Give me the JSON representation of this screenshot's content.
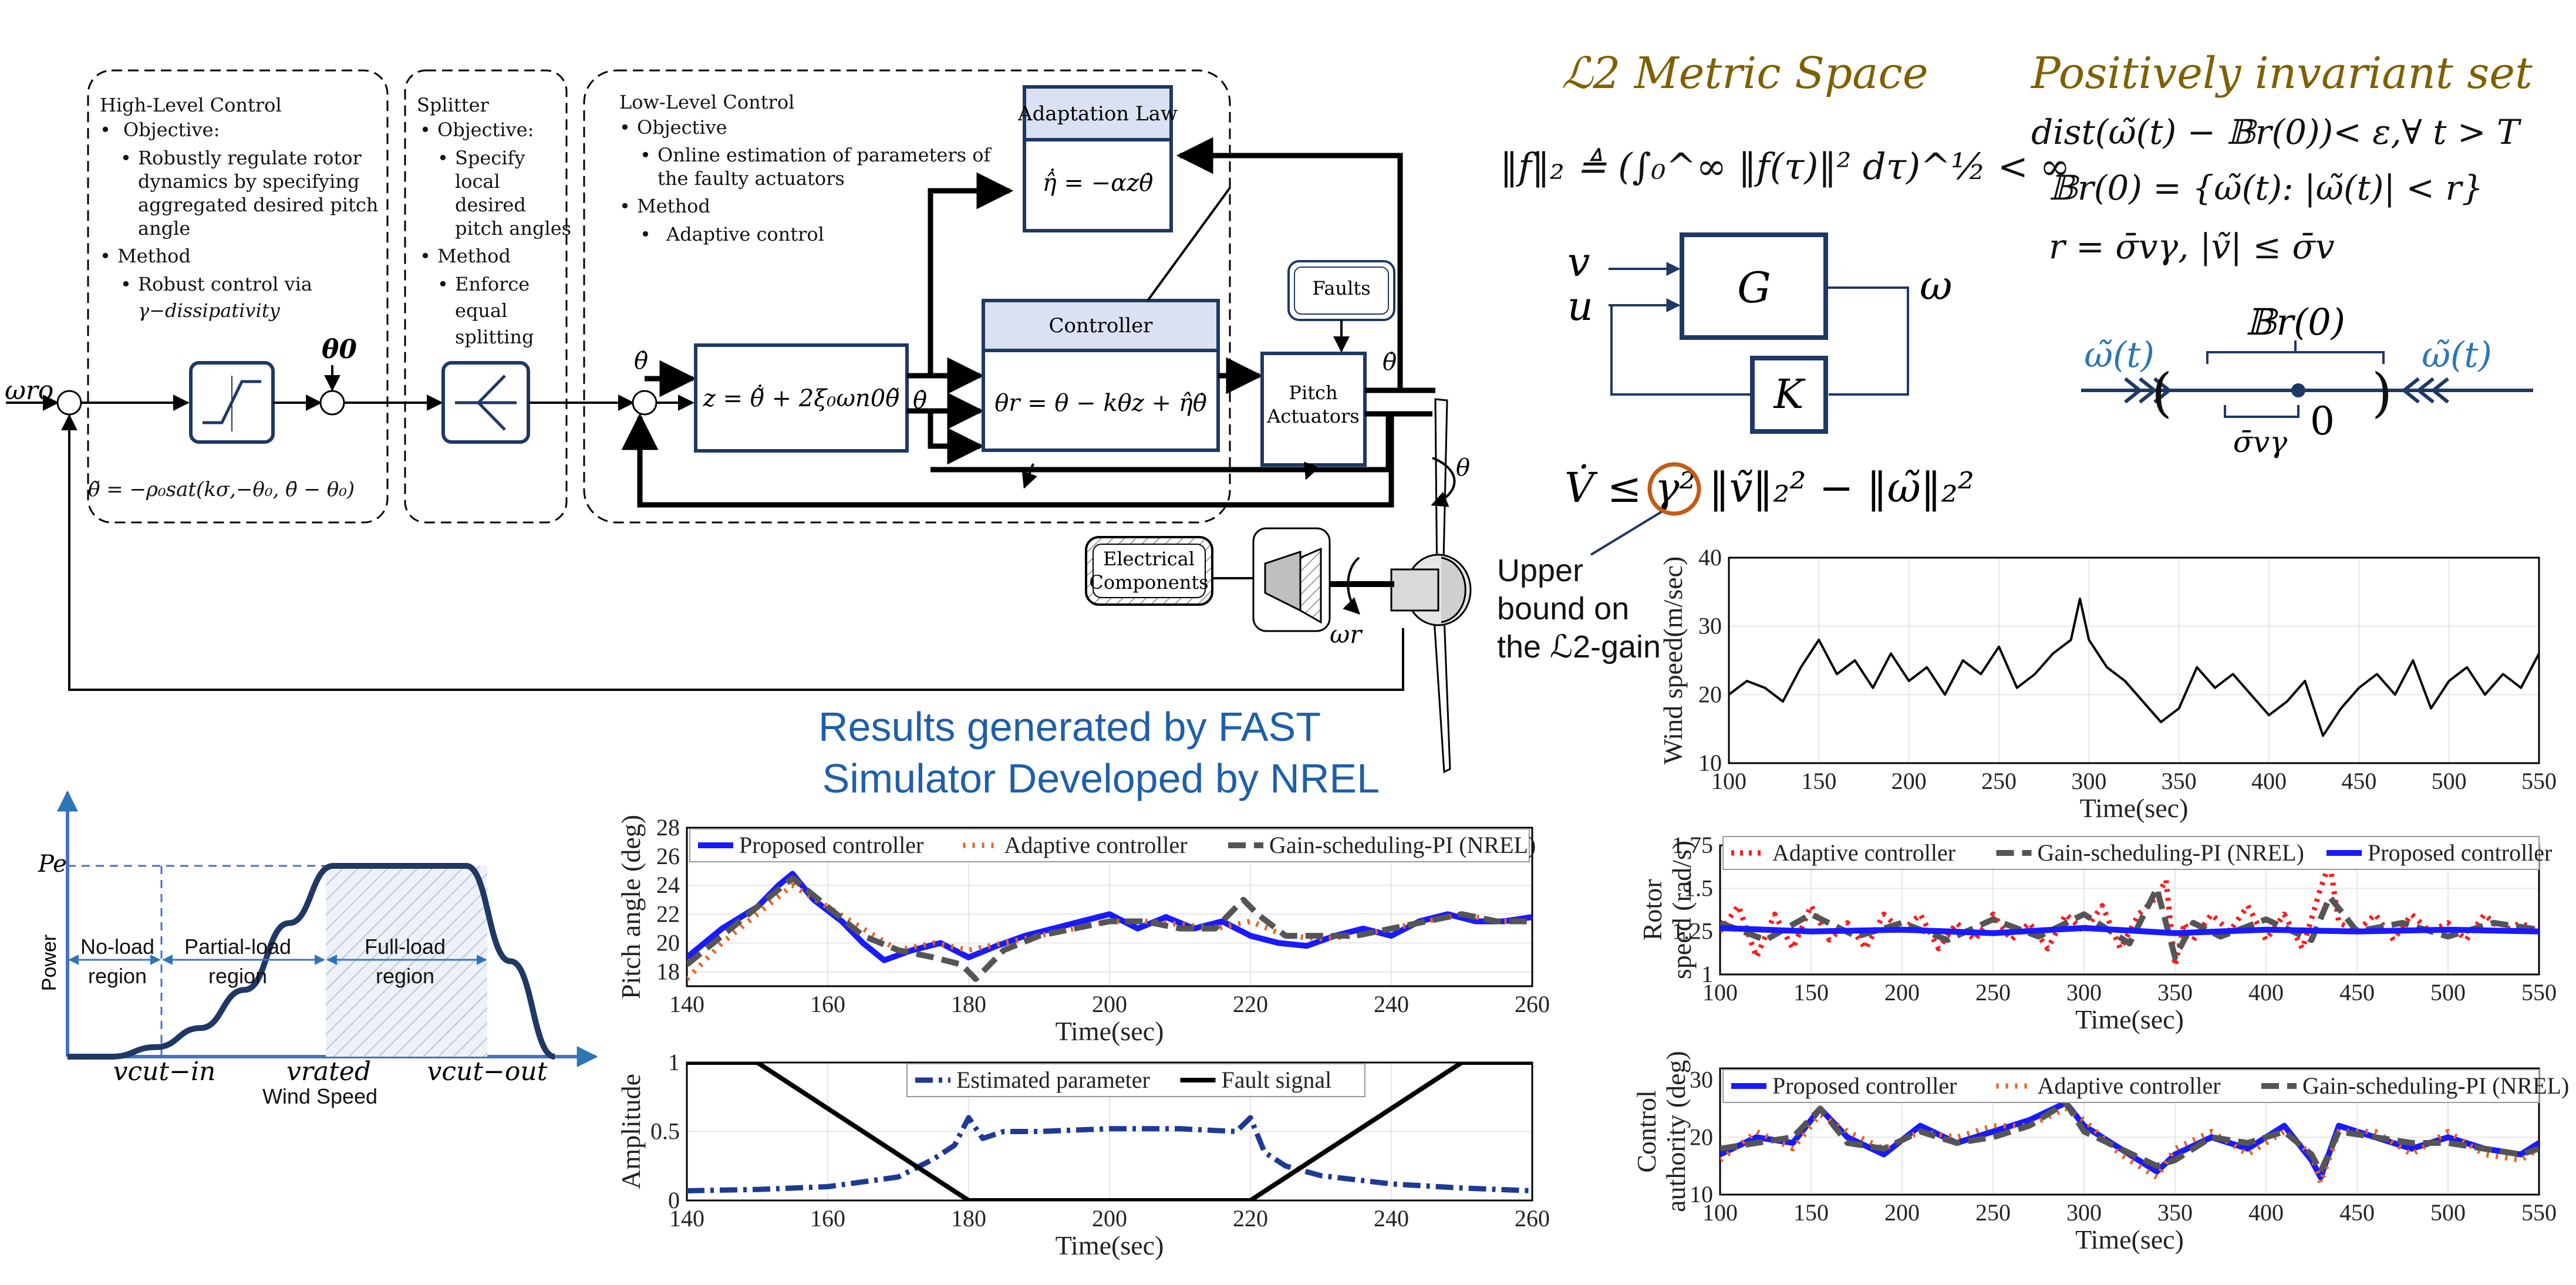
{
  "diagram": {
    "high_level": {
      "title": "High-Level Control",
      "objective": "Objective:",
      "objective_text": [
        "Robustly regulate rotor",
        "dynamics by specifying",
        "aggregated desired pitch",
        "angle"
      ],
      "method": "Method",
      "method_text": [
        "Robust control via",
        "γ−dissipativity"
      ],
      "saturation_eq": "θ̃ = −ρ₀sat(kσ,−θ₀, θ̄ − θ₀)"
    },
    "splitter": {
      "title": "Splitter",
      "objective": "Objective:",
      "objective_text": [
        "Specify",
        "local",
        "desired",
        "pitch angles"
      ],
      "method": "Method",
      "method_text": [
        "Enforce",
        "equal",
        "splitting"
      ]
    },
    "low_level": {
      "title": "Low-Level Control",
      "objective": "Objective",
      "objective_text": [
        "Online estimation of parameters of",
        "the faulty actuators"
      ],
      "method": "Method",
      "method_text": [
        "Adaptive control"
      ]
    },
    "blocks": {
      "adaptation_law": "Adaptation Law",
      "adaptation_eq": "η̂̇ = −αzθ̇",
      "controller": "Controller",
      "controller_eq": "θr = θ − kθz + η̂θ̇",
      "z_eq": "z = θ̃̇ + 2ξ₀ωn0θ̃",
      "faults": "Faults",
      "pitch_actuators": [
        "Pitch",
        "Actuators"
      ],
      "electrical": [
        "Electrical",
        "Components"
      ]
    },
    "signals": {
      "omega_ro": "ωro",
      "theta0": "θ0",
      "theta_dot_in": "θ̇",
      "theta_dot_mid": "θ̇",
      "theta_dot_out": "θ̇",
      "theta_out": "θ",
      "omega_r": "ωr"
    },
    "results_title": [
      "Results generated by FAST",
      "Simulator Developed by NREL"
    ]
  },
  "theory": {
    "l2_title": "ℒ2 Metric Space",
    "l2_norm": "‖f‖₂ ≜ (∫₀^∞ ‖f(τ)‖² dτ)^½ < ∞",
    "invariant_title": "Positively invariant set",
    "inv_line1": "dist(ω̃(t) − 𝔹r(0))< ε,∀ t > T",
    "inv_line2": "𝔹r(0) = {ω̃(t): |ω̃(t)| < r}",
    "inv_line3": "r = σ̄vγ,  |ṽ| ≤ σ̄v",
    "plant": "G",
    "controller": "K",
    "in_v": "v",
    "in_u": "u",
    "out_w": "ω",
    "dissipation": "V̇ ≤ γ² ‖ṽ‖₂² − ‖ω̃‖₂²",
    "gamma_note": [
      "Upper",
      "bound on",
      "the ℒ2-gain"
    ],
    "ball_label": "𝔹r(0)",
    "omega_left": "ω̃(t)",
    "omega_right": "ω̃(t)",
    "zero": "0",
    "radius": "σ̄vγ"
  },
  "colors": {
    "proposed": "#1a1aff",
    "adaptive": "#e8631a",
    "adaptive_red": "#ff1a1a",
    "nrel": "#555555",
    "estimated": "#1f3a93",
    "theory_title": "#7f6000",
    "diagram_blue": "#1f3864",
    "results_title": "#1f5fa8"
  },
  "chart_data": [
    {
      "id": "power_curve",
      "type": "area",
      "title": "",
      "xlabel": "Wind Speed",
      "ylabel": "Power",
      "y_tick": "Pe",
      "x_ticks": [
        "vcut−in",
        "vrated",
        "vcut−out"
      ],
      "regions": [
        {
          "name": "No-load",
          "sub": "region"
        },
        {
          "name": "Partial-load",
          "sub": "region"
        },
        {
          "name": "Full-load",
          "sub": "region"
        }
      ],
      "x": [
        0,
        1,
        2,
        3,
        4,
        5,
        6,
        7,
        8,
        9,
        10,
        11
      ],
      "y": [
        0,
        0,
        0.05,
        0.15,
        0.35,
        0.7,
        1,
        1,
        1,
        1,
        0.5,
        0
      ]
    },
    {
      "id": "pitch_angle",
      "type": "line",
      "xlabel": "Time(sec)",
      "ylabel": "Pitch angle (deg)",
      "xlim": [
        140,
        260
      ],
      "ylim": [
        17,
        28
      ],
      "x_ticks": [
        140,
        160,
        180,
        200,
        220,
        240,
        260
      ],
      "y_ticks": [
        18,
        20,
        22,
        24,
        26,
        28
      ],
      "series": [
        {
          "name": "Proposed controller",
          "style": "solid",
          "x": [
            140,
            145,
            150,
            153,
            155,
            158,
            162,
            165,
            168,
            172,
            176,
            180,
            184,
            188,
            192,
            196,
            200,
            204,
            208,
            212,
            216,
            220,
            224,
            228,
            232,
            236,
            240,
            244,
            248,
            252,
            256,
            260
          ],
          "y": [
            19,
            21,
            22.5,
            24,
            24.8,
            23,
            21.5,
            20,
            18.8,
            19.5,
            20,
            19,
            19.8,
            20.5,
            21,
            21.5,
            22,
            21,
            21.8,
            21,
            21.5,
            20.5,
            20,
            19.8,
            20.5,
            21,
            20.5,
            21.5,
            22,
            21.5,
            21.5,
            21.8
          ]
        },
        {
          "name": "Adaptive controller",
          "style": "dotted",
          "x": [
            140,
            145,
            150,
            155,
            160,
            165,
            170,
            175,
            180,
            185,
            190,
            195,
            200,
            205,
            210,
            215,
            220,
            225,
            230,
            235,
            240,
            245,
            250,
            255,
            260
          ],
          "y": [
            17.5,
            20,
            22,
            24,
            22.5,
            21,
            19.5,
            20,
            19.5,
            20,
            20.5,
            21,
            21.5,
            21.5,
            21.3,
            21,
            21.5,
            20.5,
            20.3,
            20.5,
            21,
            21.5,
            22,
            21.5,
            21.5
          ]
        },
        {
          "name": "Gain-scheduling-PI (NREL)",
          "style": "dash",
          "x": [
            140,
            145,
            150,
            155,
            160,
            165,
            170,
            175,
            179,
            181,
            185,
            190,
            195,
            200,
            205,
            210,
            215,
            219,
            221,
            225,
            230,
            235,
            240,
            245,
            250,
            255,
            260
          ],
          "y": [
            18.5,
            20.5,
            22.5,
            24.5,
            22.5,
            20.5,
            19.5,
            19,
            18.5,
            17.5,
            19.5,
            20.5,
            21,
            21.5,
            21.5,
            21,
            21,
            23,
            22,
            20.5,
            20.5,
            20.5,
            21,
            21.5,
            22,
            21.5,
            21.5
          ]
        }
      ]
    },
    {
      "id": "fault_estimation",
      "type": "line",
      "xlabel": "Time(sec)",
      "ylabel": "Amplitude",
      "xlim": [
        140,
        260
      ],
      "ylim": [
        0,
        1
      ],
      "x_ticks": [
        140,
        160,
        180,
        200,
        220,
        240,
        260
      ],
      "y_ticks": [
        0,
        0.5,
        1
      ],
      "series": [
        {
          "name": "Estimated parameter",
          "style": "dashdot",
          "x": [
            140,
            150,
            160,
            170,
            175,
            178,
            180,
            182,
            185,
            190,
            200,
            210,
            218,
            220,
            222,
            225,
            230,
            240,
            250,
            260
          ],
          "y": [
            0.07,
            0.08,
            0.1,
            0.17,
            0.3,
            0.4,
            0.6,
            0.45,
            0.5,
            0.5,
            0.52,
            0.52,
            0.5,
            0.6,
            0.35,
            0.25,
            0.18,
            0.12,
            0.09,
            0.07
          ]
        },
        {
          "name": "Fault signal",
          "style": "solid",
          "x": [
            140,
            150,
            180,
            220,
            250,
            260
          ],
          "y": [
            1,
            1,
            0,
            0,
            1,
            1
          ]
        }
      ]
    },
    {
      "id": "wind_speed",
      "type": "line",
      "xlabel": "Time(sec)",
      "ylabel": "Wind speed(m/sec)",
      "xlim": [
        100,
        550
      ],
      "ylim": [
        10,
        40
      ],
      "x_ticks": [
        100,
        150,
        200,
        250,
        300,
        350,
        400,
        450,
        500,
        550
      ],
      "y_ticks": [
        10,
        20,
        30,
        40
      ],
      "series": [
        {
          "name": "",
          "style": "solid",
          "x": [
            100,
            110,
            120,
            130,
            140,
            150,
            160,
            170,
            180,
            190,
            200,
            210,
            220,
            230,
            240,
            250,
            260,
            270,
            280,
            290,
            295,
            300,
            310,
            320,
            330,
            340,
            350,
            360,
            370,
            380,
            390,
            400,
            410,
            420,
            430,
            440,
            450,
            460,
            470,
            480,
            490,
            500,
            510,
            520,
            530,
            540,
            550
          ],
          "y": [
            20,
            22,
            21,
            19,
            24,
            28,
            23,
            25,
            21,
            26,
            22,
            24,
            20,
            25,
            23,
            27,
            21,
            23,
            26,
            28,
            34,
            28,
            24,
            22,
            19,
            16,
            18,
            24,
            21,
            23,
            20,
            17,
            19,
            22,
            14,
            18,
            21,
            23,
            20,
            25,
            18,
            22,
            24,
            20,
            23,
            21,
            26
          ]
        }
      ]
    },
    {
      "id": "rotor_speed",
      "type": "line",
      "xlabel": "Time(sec)",
      "ylabel": "Rotor speed (rad/s)",
      "xlim": [
        100,
        550
      ],
      "ylim": [
        1,
        1.75
      ],
      "x_ticks": [
        100,
        150,
        200,
        250,
        300,
        350,
        400,
        450,
        500,
        550
      ],
      "y_ticks": [
        1,
        1.25,
        1.5,
        1.75
      ],
      "series": [
        {
          "name": "Adaptive controller",
          "style": "dotted",
          "x": [
            100,
            110,
            120,
            130,
            140,
            150,
            160,
            170,
            180,
            190,
            200,
            210,
            220,
            230,
            240,
            250,
            260,
            270,
            280,
            290,
            300,
            310,
            320,
            330,
            340,
            345,
            350,
            355,
            360,
            370,
            380,
            390,
            400,
            410,
            420,
            430,
            435,
            440,
            450,
            460,
            470,
            480,
            490,
            500,
            510,
            520,
            530,
            540,
            550
          ],
          "y": [
            1.25,
            1.4,
            1.1,
            1.35,
            1.15,
            1.4,
            1.2,
            1.3,
            1.15,
            1.35,
            1.25,
            1.35,
            1.15,
            1.3,
            1.2,
            1.35,
            1.2,
            1.3,
            1.15,
            1.35,
            1.25,
            1.4,
            1.15,
            1.35,
            1.45,
            1.55,
            1.05,
            1.3,
            1.2,
            1.35,
            1.25,
            1.4,
            1.2,
            1.35,
            1.15,
            1.5,
            1.65,
            1.3,
            1.25,
            1.35,
            1.2,
            1.35,
            1.25,
            1.3,
            1.2,
            1.35,
            1.25,
            1.3,
            1.25
          ]
        },
        {
          "name": "Gain-scheduling-PI (NREL)",
          "style": "dash",
          "x": [
            100,
            125,
            150,
            175,
            200,
            225,
            250,
            275,
            300,
            325,
            340,
            350,
            360,
            375,
            400,
            425,
            435,
            450,
            475,
            500,
            525,
            550
          ],
          "y": [
            1.3,
            1.2,
            1.35,
            1.22,
            1.3,
            1.2,
            1.32,
            1.22,
            1.35,
            1.18,
            1.5,
            1.1,
            1.3,
            1.22,
            1.32,
            1.2,
            1.45,
            1.25,
            1.3,
            1.22,
            1.3,
            1.26
          ]
        },
        {
          "name": "Proposed controller",
          "style": "solid",
          "x": [
            100,
            150,
            200,
            250,
            300,
            350,
            400,
            450,
            500,
            550
          ],
          "y": [
            1.27,
            1.25,
            1.26,
            1.24,
            1.27,
            1.24,
            1.26,
            1.25,
            1.26,
            1.25
          ]
        }
      ]
    },
    {
      "id": "control_authority",
      "type": "line",
      "xlabel": "Time(sec)",
      "ylabel": "Control authority (deg)",
      "xlim": [
        100,
        550
      ],
      "ylim": [
        10,
        32
      ],
      "x_ticks": [
        100,
        150,
        200,
        250,
        300,
        350,
        400,
        450,
        500,
        550
      ],
      "y_ticks": [
        10,
        20,
        30
      ],
      "series": [
        {
          "name": "Proposed controller",
          "style": "solid",
          "x": [
            100,
            120,
            140,
            155,
            170,
            190,
            210,
            230,
            250,
            270,
            290,
            300,
            320,
            340,
            350,
            370,
            390,
            410,
            425,
            430,
            440,
            460,
            480,
            500,
            520,
            540,
            550
          ],
          "y": [
            17,
            20,
            19,
            25,
            20,
            17,
            22,
            19,
            21,
            23,
            26,
            22,
            18,
            14,
            17,
            20,
            18,
            22,
            16,
            13,
            22,
            20,
            18,
            20,
            18,
            17,
            19
          ]
        },
        {
          "name": "Adaptive controller",
          "style": "dotted",
          "x": [
            100,
            120,
            140,
            155,
            170,
            190,
            210,
            230,
            250,
            270,
            290,
            300,
            320,
            340,
            350,
            370,
            390,
            410,
            425,
            430,
            440,
            460,
            480,
            500,
            520,
            540,
            550
          ],
          "y": [
            16,
            21,
            18,
            24,
            21,
            18,
            21,
            20,
            22,
            22,
            25,
            23,
            17,
            13,
            18,
            21,
            17,
            21,
            17,
            12,
            21,
            21,
            17,
            21,
            17,
            16,
            18
          ]
        },
        {
          "name": "Gain-scheduling-PI (NREL)",
          "style": "dash",
          "x": [
            100,
            120,
            140,
            155,
            170,
            190,
            210,
            230,
            250,
            270,
            290,
            300,
            320,
            340,
            350,
            370,
            390,
            410,
            425,
            430,
            440,
            460,
            480,
            500,
            520,
            540,
            550
          ],
          "y": [
            18,
            19,
            20,
            25,
            19,
            18,
            21,
            19,
            20,
            22,
            26,
            21,
            18,
            15,
            16,
            20,
            19,
            21,
            17,
            14,
            21,
            20,
            19,
            19,
            18,
            17,
            18
          ]
        }
      ]
    }
  ]
}
